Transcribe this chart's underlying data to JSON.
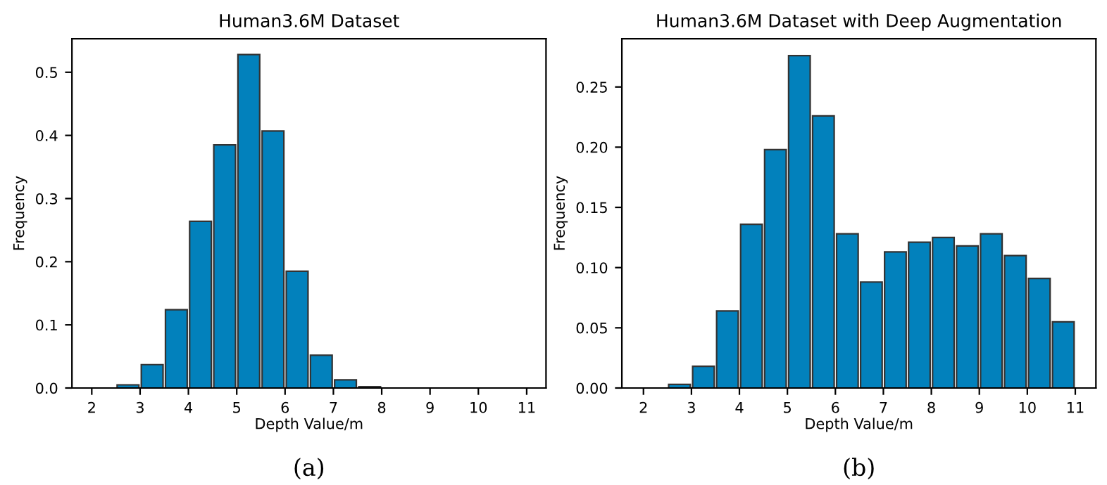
{
  "chart_data": [
    {
      "type": "histogram",
      "title": "Human3.6M Dataset",
      "xlabel": "Depth Value/m",
      "ylabel": "Frequency",
      "annotations": [
        "(a)"
      ],
      "color": "#0281bc",
      "bins": [
        2,
        2.5,
        3,
        3.5,
        4,
        4.5,
        5,
        5.5,
        6,
        6.5,
        7,
        7.5,
        8,
        8.5,
        9,
        9.5,
        10,
        10.5,
        11
      ],
      "values": [
        0,
        0.005,
        0.037,
        0.124,
        0.264,
        0.385,
        0.528,
        0.407,
        0.185,
        0.052,
        0.013,
        0.002,
        0,
        0,
        0,
        0,
        0,
        0
      ],
      "xlim": [
        1.59,
        11.4
      ],
      "xticks": [
        2,
        3,
        4,
        5,
        6,
        7,
        8,
        9,
        10,
        11
      ],
      "ylim": [
        0,
        0.553
      ],
      "yticks": [
        {
          "value": 0.0,
          "label": "0.0"
        },
        0.1,
        0.2,
        0.3,
        0.4,
        0.5
      ],
      "grid": false
    },
    {
      "type": "histogram",
      "title": "Human3.6M Dataset with Deep Augmentation",
      "xlabel": "Depth Value/m",
      "ylabel": "Frequency",
      "annotations": [
        "(b)"
      ],
      "color": "#0281bc",
      "bins": [
        2,
        2.5,
        3,
        3.5,
        4,
        4.5,
        5,
        5.5,
        6,
        6.5,
        7,
        7.5,
        8,
        8.5,
        9,
        9.5,
        10,
        10.5,
        11
      ],
      "values": [
        0,
        0.003,
        0.018,
        0.064,
        0.136,
        0.198,
        0.276,
        0.226,
        0.128,
        0.088,
        0.113,
        0.121,
        0.125,
        0.118,
        0.128,
        0.11,
        0.091,
        0.055
      ],
      "xlim": [
        1.55,
        11.43
      ],
      "xticks": [
        2,
        3,
        4,
        5,
        6,
        7,
        8,
        9,
        10,
        11
      ],
      "ylim": [
        0,
        0.29
      ],
      "yticks": [
        {
          "value": 0.0,
          "label": "0.00"
        },
        {
          "value": 0.05,
          "label": "0.05"
        },
        {
          "value": 0.1,
          "label": "0.10"
        },
        {
          "value": 0.15,
          "label": "0.15"
        },
        {
          "value": 0.2,
          "label": "0.20"
        },
        {
          "value": 0.25,
          "label": "0.25"
        }
      ],
      "grid": false
    }
  ]
}
